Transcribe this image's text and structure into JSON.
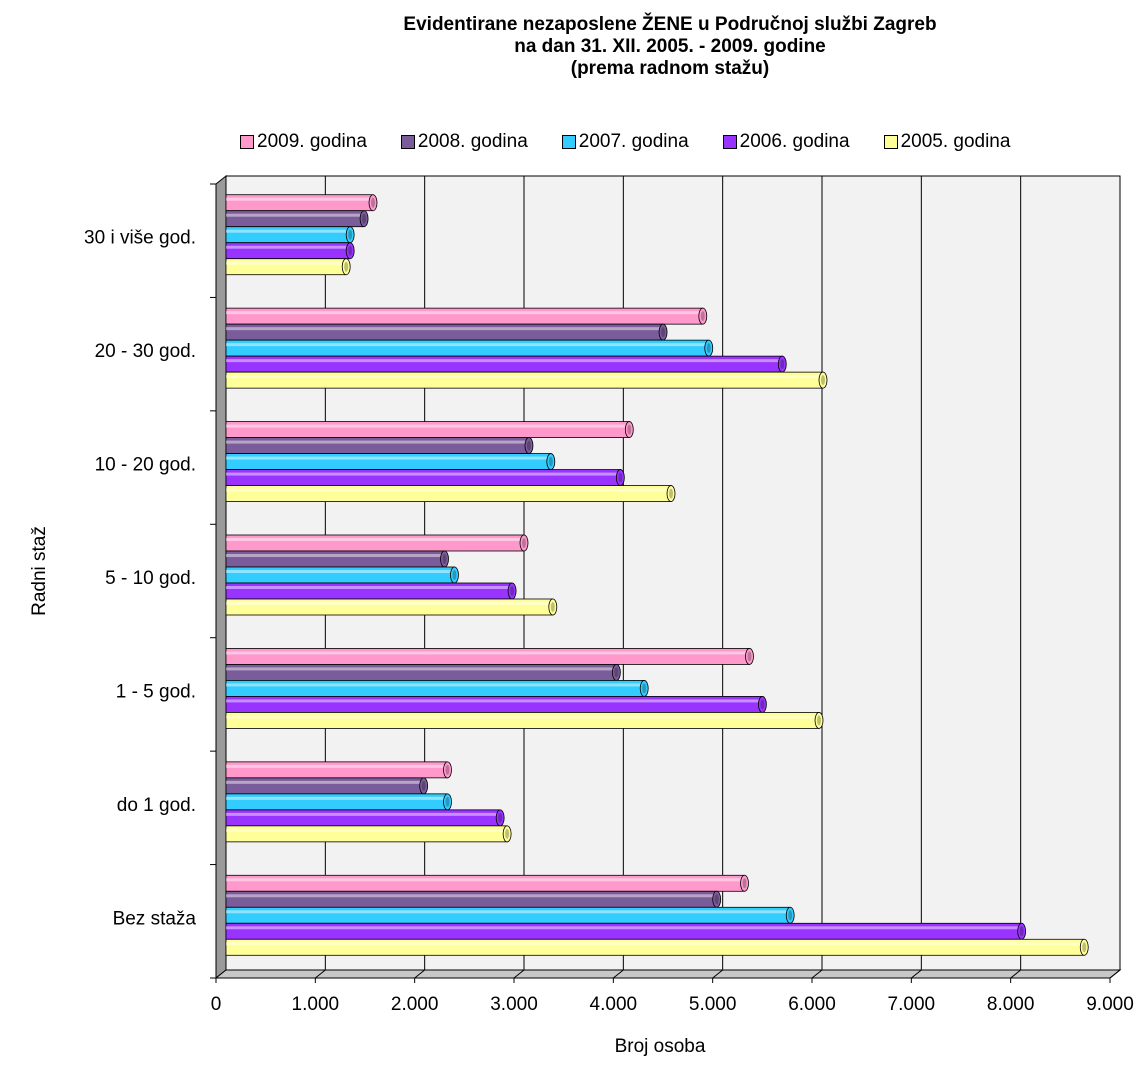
{
  "chart_data": {
    "type": "bar",
    "orientation": "horizontal",
    "title_lines": [
      "Evidentirane nezaposlene ŽENE u Područnoj službi Zagreb",
      "na dan 31. XII. 2005. - 2009. godine",
      "(prema radnom stažu)"
    ],
    "xlabel": "Broj osoba",
    "ylabel": "Radni staž",
    "xlim": [
      0,
      9000
    ],
    "x_ticks": [
      0,
      1000,
      2000,
      3000,
      4000,
      5000,
      6000,
      7000,
      8000,
      9000
    ],
    "x_tick_labels": [
      "0",
      "1.000",
      "2.000",
      "3.000",
      "4.000",
      "5.000",
      "6.000",
      "7.000",
      "8.000",
      "9.000"
    ],
    "grid": true,
    "legend_position": "top",
    "categories": [
      "30 i više god.",
      "20 - 30 god.",
      "10 - 20 god.",
      "5 - 10 god.",
      "1 - 5 god.",
      "do 1 god.",
      "Bez staža"
    ],
    "series": [
      {
        "name": "2009. godina",
        "color": "#FF99CC",
        "values": [
          1480,
          4800,
          4060,
          3000,
          5270,
          2230,
          5220
        ]
      },
      {
        "name": "2008. godina",
        "color": "#7B5C9A",
        "values": [
          1390,
          4400,
          3050,
          2200,
          3930,
          1990,
          4940
        ]
      },
      {
        "name": "2007. godina",
        "color": "#33CCFF",
        "values": [
          1250,
          4860,
          3270,
          2300,
          4210,
          2230,
          5680
        ]
      },
      {
        "name": "2006. godina",
        "color": "#9933FF",
        "values": [
          1250,
          5600,
          3970,
          2880,
          5400,
          2760,
          8010
        ]
      },
      {
        "name": "2005. godina",
        "color": "#FFFF99",
        "values": [
          1210,
          6010,
          4480,
          3290,
          5970,
          2830,
          8640
        ]
      }
    ]
  }
}
